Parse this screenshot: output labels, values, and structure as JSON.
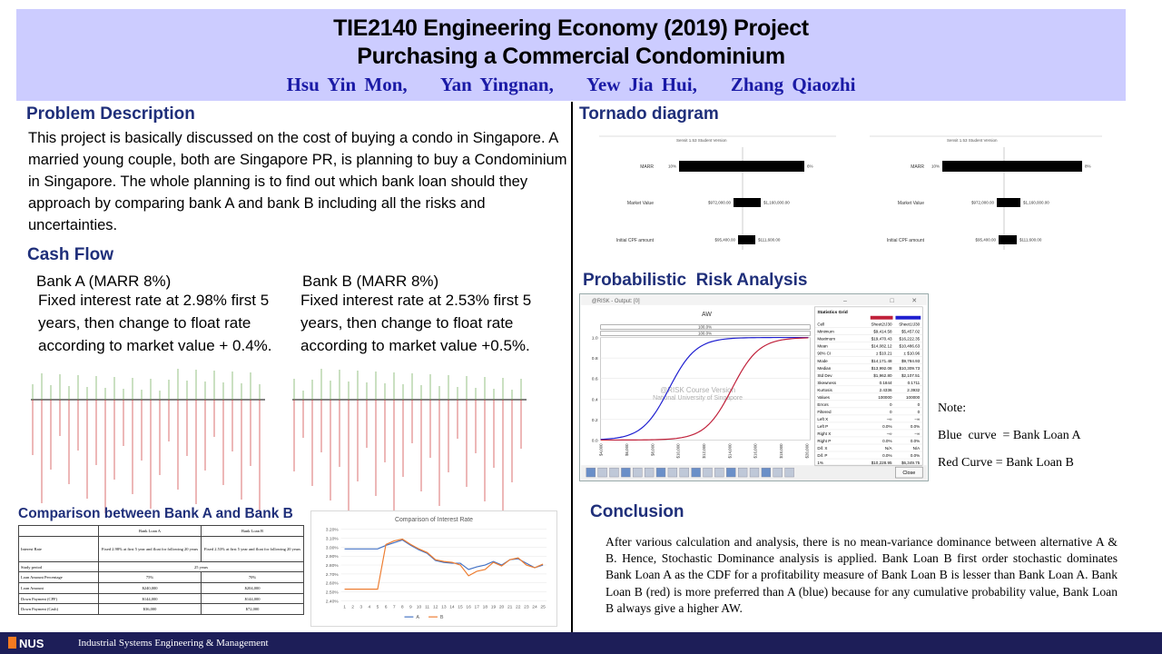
{
  "header": {
    "title_line1": "TIE2140 Engineering Economy (2019) Project",
    "title_line2": "Purchasing a Commercial Condominium",
    "authors": "Hsu Yin Mon,    Yan Yingnan,    Yew Jia Hui,    Zhang Qiaozhi"
  },
  "problem": {
    "title": "Problem Description",
    "text": "This project is basically discussed on the cost of buying a condo in Singapore. A married young couple, both are Singapore PR, is planning to buy a Condominium in Singapore. The whole planning is to find out which bank loan should they approach by comparing bank A and bank B including all the risks and uncertainties."
  },
  "cashflow": {
    "title": "Cash Flow",
    "bank_a": {
      "head": "Bank A (MARR 8%)",
      "desc": "Fixed interest rate at 2.98% first 5 years, then change to float rate according to market value + 0.4%."
    },
    "bank_b": {
      "head": "Bank B (MARR 8%)",
      "desc": "Fixed interest rate at 2.53% first 5 years, then change to float rate according to market value +0.5%."
    }
  },
  "comparison": {
    "title": "Comparison between Bank A and Bank B",
    "table": {
      "header": [
        "",
        "Bank Loan A",
        "Bank Loan B"
      ],
      "rows": [
        [
          "Interest Rate",
          "Fixed 2.98% at first 5 year and float for following 20 years",
          "Fixed 2.53% at first 5 year and float for following 20 years"
        ],
        [
          "Study period",
          "25 years",
          ""
        ],
        [
          "Loan Amount Percentage",
          "75%",
          "70%"
        ],
        [
          "Loan Amount",
          "$240,000",
          "$204,000"
        ],
        [
          "Down Payment (CPF)",
          "$144,000",
          "$144,000"
        ],
        [
          "Down Payment (Cash)",
          "$36,000",
          "$72,000"
        ]
      ]
    },
    "chart_title": "Comparison of Interest Rate",
    "legend_a": "A",
    "legend_b": "B",
    "color_a": "#4472c4",
    "color_b": "#ed7d31"
  },
  "chart_data": {
    "type": "line",
    "title": "Comparison of Interest Rate",
    "x": [
      1,
      2,
      3,
      4,
      5,
      6,
      7,
      8,
      9,
      10,
      11,
      12,
      13,
      14,
      15,
      16,
      17,
      18,
      19,
      20,
      21,
      22,
      23,
      24,
      25
    ],
    "series": [
      {
        "name": "A",
        "values": [
          2.98,
          2.98,
          2.98,
          2.98,
          2.98,
          3.02,
          3.05,
          3.08,
          3.02,
          2.97,
          2.93,
          2.85,
          2.83,
          2.82,
          2.82,
          2.75,
          2.78,
          2.8,
          2.84,
          2.8,
          2.86,
          2.87,
          2.82,
          2.77,
          2.8
        ]
      },
      {
        "name": "B",
        "values": [
          2.53,
          2.53,
          2.53,
          2.53,
          2.53,
          3.03,
          3.07,
          3.09,
          3.03,
          2.98,
          2.94,
          2.86,
          2.84,
          2.83,
          2.8,
          2.68,
          2.73,
          2.75,
          2.83,
          2.79,
          2.86,
          2.88,
          2.8,
          2.77,
          2.81
        ]
      }
    ],
    "ylim": [
      2.4,
      3.2
    ],
    "yticks": [
      "2.40%",
      "2.50%",
      "2.60%",
      "2.70%",
      "2.80%",
      "2.90%",
      "3.00%",
      "3.10%",
      "3.20%"
    ]
  },
  "tornado": {
    "title": "Tornado diagram",
    "caption": "Sensit 1.53 Student Version",
    "rows": [
      {
        "label": "MARR",
        "low": "10%",
        "high": "6%"
      },
      {
        "label": "Market Value",
        "low": "$972,000.00",
        "high": "$1,160,000.00"
      },
      {
        "label": "Initial CPF amount",
        "low": "$95,400.00",
        "high": "$111,600.00"
      }
    ],
    "rows_b": [
      {
        "label": "MARR",
        "low": "10%",
        "high": "8%"
      },
      {
        "label": "Market Value",
        "low": "$972,000.00",
        "high": "$1,160,000.00"
      },
      {
        "label": "Initial CPF amount",
        "low": "$95,400.00",
        "high": "$111,600.00"
      }
    ]
  },
  "risk": {
    "title": "Probabilistic  Risk Analysis",
    "window_title": "@RISK - Output: [0]",
    "chart_title": "AW",
    "band1": "100.0%",
    "band2": "100.0%",
    "watermark1": "@RISK Course Version",
    "watermark2": "National University of Singapore",
    "x_ticks": [
      "$4,000",
      "$6,000",
      "$8,000",
      "$10,000",
      "$12,000",
      "$14,000",
      "$16,000",
      "$18,000",
      "$20,000"
    ],
    "y_ticks": [
      "1.0",
      "0.8",
      "0.6",
      "0.4",
      "0.2",
      "0.0"
    ],
    "grid_title": "Statistics Grid",
    "grid_cols": [
      "Cell",
      "Sheet2!J30",
      "Sheet1!J30"
    ],
    "grid_rows": [
      [
        "Minimum",
        "$9,414.58",
        "$5,457.02"
      ],
      [
        "Maximum",
        "$19,470.43",
        "$16,222.35"
      ],
      [
        "Mean",
        "$14,082.12",
        "$10,486.63"
      ],
      [
        "90% CI",
        "± $10.21",
        "± $10.96"
      ],
      [
        "Mode",
        "$14,171.48",
        "$9,784.93"
      ],
      [
        "Median",
        "$13,992.08",
        "$10,309.73"
      ],
      [
        "Std Dev",
        "$1,962.80",
        "$2,107.51"
      ],
      [
        "Skewness",
        "0.1844",
        "0.1711"
      ],
      [
        "Kurtosis",
        "2.4336",
        "2.3932"
      ],
      [
        "Values",
        "100000",
        "100000"
      ],
      [
        "Errors",
        "0",
        "0"
      ],
      [
        "Filtered",
        "0",
        "0"
      ],
      [
        "Left X",
        "−∞",
        "−∞"
      ],
      [
        "Left P",
        "0.0%",
        "0.0%"
      ],
      [
        "Right X",
        "−∞",
        "−∞"
      ],
      [
        "Right P",
        "0.0%",
        "0.0%"
      ],
      [
        "Dif. X",
        "N/A",
        "N/A"
      ],
      [
        "Dif. P",
        "0.0%",
        "0.0%"
      ],
      [
        "1%",
        "$10,228.95",
        "$6,349.75"
      ]
    ],
    "close_label": "Close",
    "color_blue": "#1f1fd0",
    "color_red": "#c0203a"
  },
  "note": {
    "label": "Note:",
    "blue": "Blue  curve  = Bank Loan A",
    "red": "Red Curve = Bank Loan B"
  },
  "conclusion": {
    "title": "Conclusion",
    "text": "After various calculation and analysis, there is no mean-variance dominance between alternative A & B. Hence, Stochastic Dominance analysis is applied. Bank Loan B first order stochastic dominates Bank Loan A as the CDF for a profitability measure of Bank Loan B is lesser than Bank Loan A. Bank Loan B (red) is more preferred than A (blue) because for any cumulative probability value, Bank Loan B always give a higher AW."
  },
  "footer": {
    "logo": "NUS",
    "text": "Industrial Systems Engineering & Management"
  }
}
